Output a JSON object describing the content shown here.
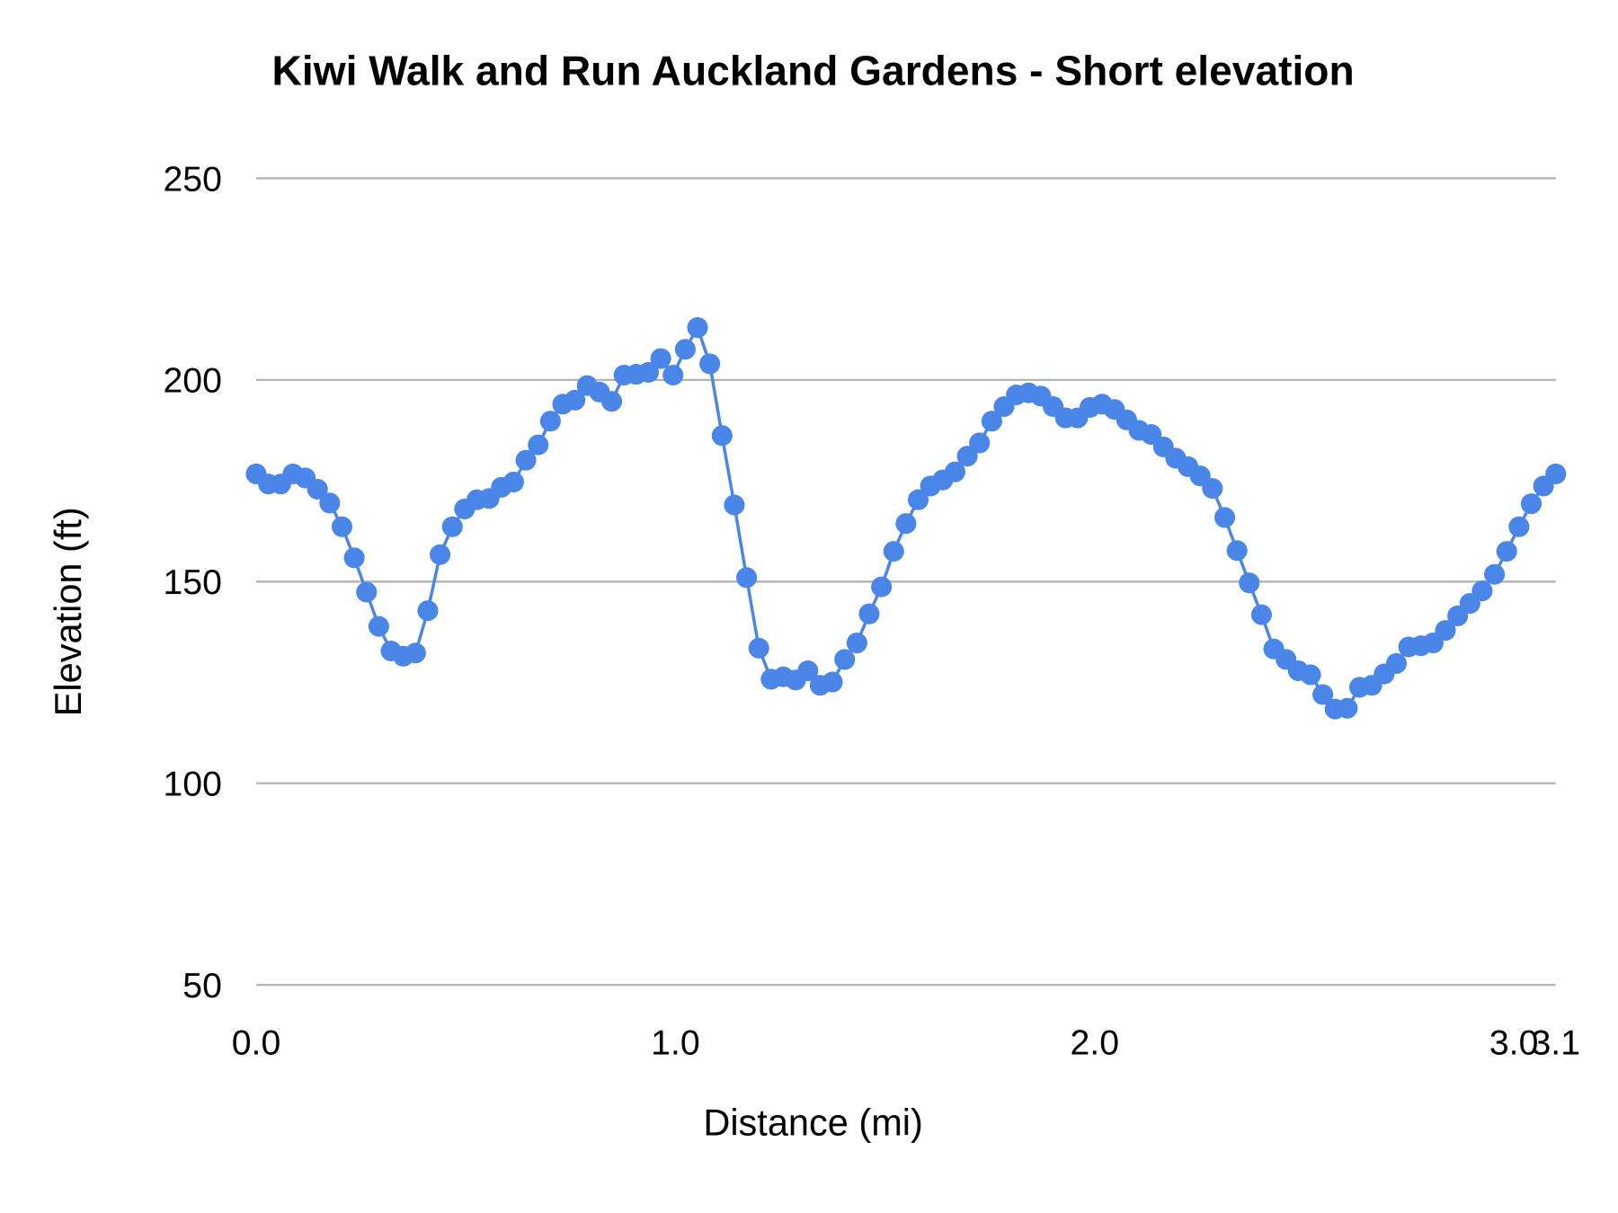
{
  "chart_data": {
    "type": "line",
    "title": "Kiwi Walk and Run Auckland Gardens - Short elevation",
    "xlabel": "Distance (mi)",
    "ylabel": "Elevation (ft)",
    "xlim": [
      0,
      3.1
    ],
    "ylim": [
      50,
      250
    ],
    "grid": true,
    "legend": "none",
    "x_ticks": [
      "0.0",
      "1.0",
      "2.0",
      "3.0",
      "3.1"
    ],
    "x_tick_values": [
      0,
      1,
      2,
      3,
      3.1
    ],
    "y_ticks": [
      "50",
      "100",
      "150",
      "200",
      "250"
    ],
    "y_tick_values": [
      50,
      100,
      150,
      200,
      250
    ],
    "series": [
      {
        "name": "Elevation",
        "color": "#4a86e8",
        "x_range": [
          0,
          3.1
        ],
        "values": [
          176.7,
          174.2,
          174.2,
          176.7,
          175.7,
          172.9,
          169.5,
          163.6,
          155.9,
          147.4,
          138.9,
          132.8,
          131.5,
          132.3,
          142.8,
          156.7,
          163.6,
          168.0,
          170.3,
          170.6,
          173.4,
          174.7,
          180.1,
          183.9,
          189.8,
          194.0,
          195.0,
          198.6,
          197.0,
          194.7,
          201.2,
          201.4,
          201.9,
          205.3,
          201.2,
          207.6,
          213.0,
          204.0,
          186.2,
          169.0,
          151.0,
          133.5,
          125.8,
          126.4,
          125.6,
          127.9,
          124.3,
          125.1,
          130.7,
          134.8,
          142.0,
          148.7,
          157.5,
          164.4,
          170.3,
          173.7,
          175.2,
          177.2,
          181.1,
          184.4,
          189.8,
          193.4,
          196.3,
          196.8,
          196.0,
          193.4,
          190.6,
          190.6,
          193.2,
          194.0,
          192.7,
          190.1,
          187.5,
          186.5,
          183.4,
          180.6,
          178.5,
          176.2,
          173.1,
          165.9,
          157.7,
          149.7,
          141.8,
          133.3,
          130.7,
          127.9,
          126.9,
          122.0,
          118.4,
          118.6,
          123.8,
          124.3,
          127.1,
          129.7,
          133.8,
          134.1,
          134.8,
          137.9,
          141.5,
          144.6,
          147.7,
          151.8,
          157.5,
          163.6,
          169.3,
          173.7,
          176.7
        ]
      }
    ]
  }
}
